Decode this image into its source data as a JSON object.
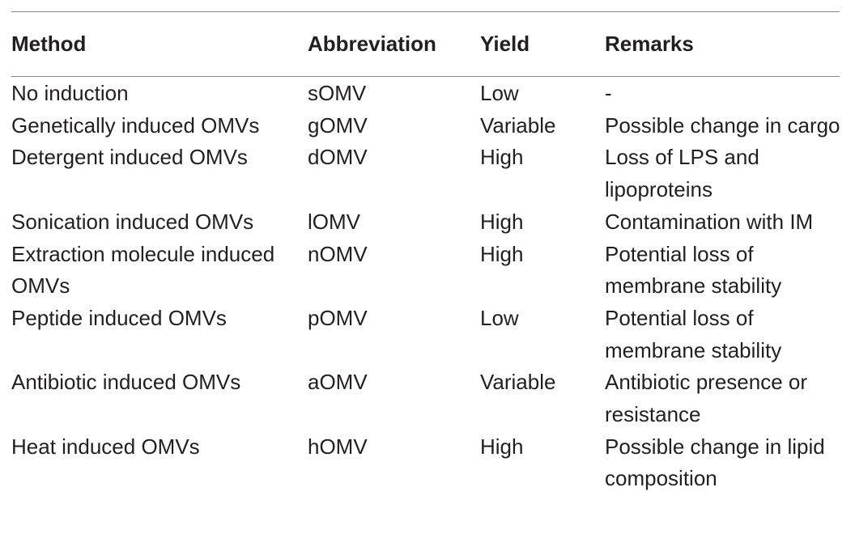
{
  "table": {
    "headers": [
      "Method",
      "Abbreviation",
      "Yield",
      "Remarks"
    ],
    "rows": [
      {
        "method": "No induction",
        "abbreviation": "sOMV",
        "yield": "Low",
        "remarks": "-"
      },
      {
        "method": "Genetically induced OMVs",
        "abbreviation": "gOMV",
        "yield": "Variable",
        "remarks": "Possible change in cargo"
      },
      {
        "method": "Detergent induced OMVs",
        "abbreviation": "dOMV",
        "yield": "High",
        "remarks": "Loss of LPS and lipoproteins"
      },
      {
        "method": "Sonication induced OMVs",
        "abbreviation": "lOMV",
        "yield": "High",
        "remarks": "Contamination with IM"
      },
      {
        "method": "Extraction molecule induced OMVs",
        "abbreviation": "nOMV",
        "yield": "High",
        "remarks": "Potential loss of membrane stability"
      },
      {
        "method": "Peptide induced OMVs",
        "abbreviation": "pOMV",
        "yield": "Low",
        "remarks": "Potential loss of membrane stability"
      },
      {
        "method": "Antibiotic induced OMVs",
        "abbreviation": "aOMV",
        "yield": "Variable",
        "remarks": "Antibiotic presence or resistance"
      },
      {
        "method": "Heat induced OMVs",
        "abbreviation": "hOMV",
        "yield": "High",
        "remarks": "Possible change in lipid composition"
      }
    ]
  }
}
